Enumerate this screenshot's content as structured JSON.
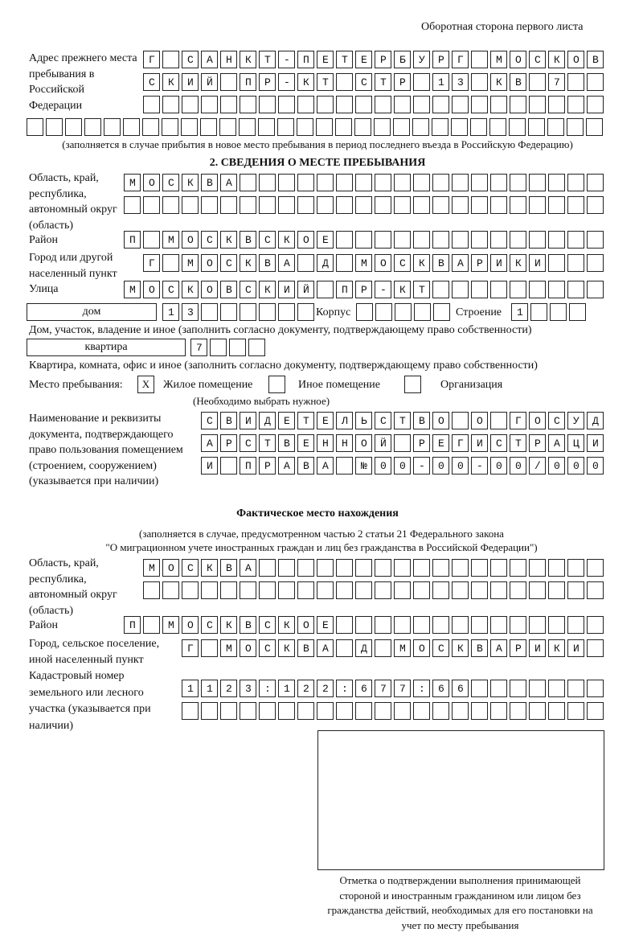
{
  "header": {
    "page_side": "Оборотная сторона первого листа"
  },
  "previous_address": {
    "label": "Адрес прежнего места пребывания в Российской Федерации",
    "rows": [
      "Г САНКТ-ПЕТЕРБУРГ МОСКОВ",
      "СКИЙ ПР-КТ СТР 13 КВ 7  ",
      "                        ",
      "                              "
    ],
    "note": "(заполняется в случае прибытия в новое место пребывания в период последнего въезда в Российскую Федерацию)"
  },
  "section2": {
    "title": "2. СВЕДЕНИЯ О МЕСТЕ ПРЕБЫВАНИЯ",
    "region_label": "Область, край, республика, автономный округ (область)",
    "region_rows": [
      "МОСКВА                   ",
      "                         "
    ],
    "district_label": "Район",
    "district": "П МОСКВСКОЕ              ",
    "city_label": "Город или другой населенный пункт",
    "city": "Г МОСКВА Д МОСКВАРИКИ   ",
    "street_label": "Улица",
    "street": "МОСКОВСКИЙ ПР-КТ         ",
    "house_type": "дом",
    "house_number": "13      ",
    "korpus_label": "Корпус",
    "korpus": "     ",
    "building_label": "Строение",
    "building": "1   ",
    "house_note": "Дом, участок, владение и иное (заполнить согласно документу, подтверждающему право собственности)",
    "apartment_type": "квартира",
    "apartment_number": "7   ",
    "apartment_note": "Квартира, комната, офис и иное (заполнить согласно документу, подтверждающему право собственности)",
    "stay_place_label": "Место пребывания:",
    "options": [
      {
        "mark": "X",
        "label": "Жилое помещение"
      },
      {
        "mark": "",
        "label": "Иное помещение"
      },
      {
        "mark": "",
        "label": "Организация"
      }
    ],
    "options_note": "(Необходимо выбрать нужное)",
    "document_label": "Наименование и реквизиты документа, подтверждающего право пользования помещением (строением, сооружением) (указывается при наличии)",
    "document_rows": [
      "СВИДЕТЕЛЬСТВО О ГОСУД",
      "АРСТВЕННОЙ РЕГИСТРАЦИ",
      "И ПРАВА №00-00-00/000"
    ]
  },
  "actual": {
    "title": "Фактическое место нахождения",
    "note1": "(заполняется в случае, предусмотренном частью 2 статьи 21 Федерального закона",
    "note2": "\"О миграционном учете иностранных граждан и лиц без гражданства в Российской Федерации\")",
    "region_label": "Область, край, республика, автономный округ (область)",
    "region_rows": [
      "МОСКВА                  ",
      "                        "
    ],
    "district_label": "Район",
    "district": "П МОСКВСКОЕ              ",
    "city_label": "Город, сельское поселение, иной населенный пункт",
    "city": "Г МОСКВА Д МОСКВАРИКИ ",
    "cadastral_label": "Кадастровый номер земельного или лесного участка (указывается при наличии)",
    "cadastral_rows": [
      "1123:122:677:66       ",
      "                      "
    ]
  },
  "stamp": {
    "caption": "Отметка о подтверждении выполнения принимающей стороной и иностранным гражданином или лицом без гражданства действий, необходимых для его постановки на учет по месту пребывания"
  }
}
